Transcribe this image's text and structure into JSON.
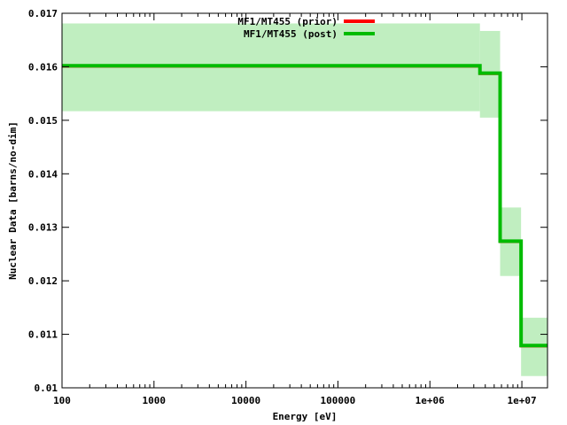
{
  "chart_data": {
    "type": "line",
    "title": "",
    "xlabel": "Energy [eV]",
    "ylabel": "Nuclear Data [barns/no-dim]",
    "x_scale": "log",
    "xlim": [
      100,
      19000000
    ],
    "ylim": [
      0.01,
      0.017
    ],
    "grid": false,
    "legend_position": "top-center",
    "x_ticks": [
      {
        "value": 100,
        "label": "100"
      },
      {
        "value": 1000,
        "label": "1000"
      },
      {
        "value": 10000,
        "label": "10000"
      },
      {
        "value": 100000,
        "label": "100000"
      },
      {
        "value": 1000000,
        "label": "1e+06"
      },
      {
        "value": 10000000,
        "label": "1e+07"
      }
    ],
    "y_ticks": [
      {
        "value": 0.01,
        "label": "0.01"
      },
      {
        "value": 0.011,
        "label": "0.011"
      },
      {
        "value": 0.012,
        "label": "0.012"
      },
      {
        "value": 0.013,
        "label": "0.013"
      },
      {
        "value": 0.014,
        "label": "0.014"
      },
      {
        "value": 0.015,
        "label": "0.015"
      },
      {
        "value": 0.016,
        "label": "0.016"
      },
      {
        "value": 0.017,
        "label": "0.017"
      }
    ],
    "series": [
      {
        "name": "MF1/MT455 (prior)",
        "color": "#ff0000",
        "steps": [
          {
            "x0": 100,
            "x1": 3500000,
            "y": 0.01601
          },
          {
            "x0": 3500000,
            "x1": 5800000,
            "y": 0.01587
          },
          {
            "x0": 5800000,
            "x1": 9800000,
            "y": 0.01273
          },
          {
            "x0": 9800000,
            "x1": 19000000,
            "y": 0.01078
          }
        ]
      },
      {
        "name": "MF1/MT455 (post)",
        "color": "#00bb00",
        "steps": [
          {
            "x0": 100,
            "x1": 3500000,
            "y": 0.01602
          },
          {
            "x0": 3500000,
            "x1": 5800000,
            "y": 0.01588
          },
          {
            "x0": 5800000,
            "x1": 9800000,
            "y": 0.01274
          },
          {
            "x0": 9800000,
            "x1": 19000000,
            "y": 0.01079
          }
        ]
      }
    ],
    "uncertainty_band": {
      "color": "#c0eec0",
      "bins": [
        {
          "x0": 100,
          "x1": 3500000,
          "low": 0.01517,
          "high": 0.01681
        },
        {
          "x0": 3500000,
          "x1": 5800000,
          "low": 0.01505,
          "high": 0.01667
        },
        {
          "x0": 5800000,
          "x1": 9800000,
          "low": 0.01209,
          "high": 0.01337
        },
        {
          "x0": 9800000,
          "x1": 19000000,
          "low": 0.01022,
          "high": 0.01131
        }
      ]
    }
  }
}
